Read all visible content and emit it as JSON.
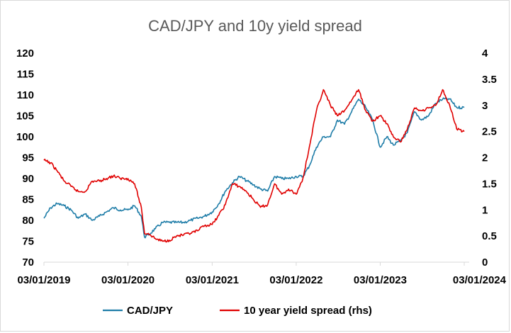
{
  "chart_data": {
    "type": "line",
    "title": "CAD/JPY and 10y yield spread",
    "xlabel": "",
    "ylabel": "",
    "x_ticks": [
      "03/01/2019",
      "03/01/2020",
      "03/01/2021",
      "03/01/2022",
      "03/01/2023",
      "03/01/2024"
    ],
    "x_range": [
      "2019-01-03",
      "2024-01-03"
    ],
    "y_left": {
      "ticks": [
        "120",
        "115",
        "110",
        "105",
        "100",
        "95",
        "90",
        "85",
        "80",
        "75",
        "70"
      ],
      "ylim": [
        70,
        120
      ]
    },
    "y_right": {
      "ticks": [
        "4",
        "3.5",
        "3",
        "2.5",
        "2",
        "1.5",
        "1",
        "0.5",
        "0"
      ],
      "ylim": [
        0,
        4
      ]
    },
    "grid": false,
    "legend_position": "bottom",
    "series": [
      {
        "name": "CAD/JPY",
        "axis": "left",
        "color": "#1F7DA8",
        "x": [
          "2019-01-03",
          "2019-02-01",
          "2019-03-01",
          "2019-04-01",
          "2019-05-01",
          "2019-06-01",
          "2019-07-01",
          "2019-08-01",
          "2019-09-01",
          "2019-10-01",
          "2019-11-01",
          "2019-12-01",
          "2020-01-03",
          "2020-02-01",
          "2020-03-01",
          "2020-03-15",
          "2020-04-01",
          "2020-05-01",
          "2020-06-01",
          "2020-07-01",
          "2020-08-01",
          "2020-09-01",
          "2020-10-01",
          "2020-11-01",
          "2020-12-01",
          "2021-01-03",
          "2021-02-01",
          "2021-03-01",
          "2021-04-01",
          "2021-05-01",
          "2021-06-01",
          "2021-07-01",
          "2021-08-01",
          "2021-09-01",
          "2021-10-01",
          "2021-11-01",
          "2021-12-01",
          "2022-01-03",
          "2022-02-01",
          "2022-03-01",
          "2022-04-01",
          "2022-05-01",
          "2022-06-01",
          "2022-07-01",
          "2022-08-01",
          "2022-09-01",
          "2022-10-01",
          "2022-11-01",
          "2022-12-01",
          "2023-01-03",
          "2023-02-01",
          "2023-03-01",
          "2023-04-01",
          "2023-05-01",
          "2023-06-01",
          "2023-07-01",
          "2023-08-01",
          "2023-09-01",
          "2023-10-01",
          "2023-11-01",
          "2023-12-01",
          "2024-01-03"
        ],
        "values": [
          80.5,
          83,
          84,
          83.5,
          82.5,
          80.5,
          81.5,
          80,
          81,
          82,
          83,
          82.5,
          82.5,
          83.5,
          81,
          76,
          76.5,
          78,
          79.5,
          79.5,
          79.5,
          79.5,
          80,
          80.5,
          81,
          82,
          84,
          87,
          89,
          90.5,
          89.5,
          88.5,
          87.5,
          87,
          90.5,
          90,
          90,
          90.5,
          90.5,
          93,
          97.5,
          100,
          100,
          104,
          103,
          106,
          109,
          107,
          104,
          97.5,
          100,
          98,
          99,
          101,
          106,
          104,
          105,
          108,
          109,
          109,
          107,
          107
        ]
      },
      {
        "name": "10 year yield spread (rhs)",
        "axis": "right",
        "color": "#E00000",
        "x": [
          "2019-01-03",
          "2019-02-01",
          "2019-03-01",
          "2019-04-01",
          "2019-05-01",
          "2019-06-01",
          "2019-07-01",
          "2019-08-01",
          "2019-09-01",
          "2019-10-01",
          "2019-11-01",
          "2019-12-01",
          "2020-01-03",
          "2020-02-01",
          "2020-03-01",
          "2020-03-15",
          "2020-04-01",
          "2020-05-01",
          "2020-06-01",
          "2020-07-01",
          "2020-08-01",
          "2020-09-01",
          "2020-10-01",
          "2020-11-01",
          "2020-12-01",
          "2021-01-03",
          "2021-02-01",
          "2021-03-01",
          "2021-04-01",
          "2021-05-01",
          "2021-06-01",
          "2021-07-01",
          "2021-08-01",
          "2021-09-01",
          "2021-10-01",
          "2021-11-01",
          "2021-12-01",
          "2022-01-03",
          "2022-02-01",
          "2022-03-01",
          "2022-04-01",
          "2022-05-01",
          "2022-06-01",
          "2022-07-01",
          "2022-08-01",
          "2022-09-01",
          "2022-10-01",
          "2022-11-01",
          "2022-12-01",
          "2023-01-03",
          "2023-02-01",
          "2023-03-01",
          "2023-04-01",
          "2023-05-01",
          "2023-06-01",
          "2023-07-01",
          "2023-08-01",
          "2023-09-01",
          "2023-10-01",
          "2023-11-01",
          "2023-12-01",
          "2024-01-03"
        ],
        "values": [
          1.95,
          1.9,
          1.75,
          1.55,
          1.45,
          1.35,
          1.35,
          1.55,
          1.55,
          1.6,
          1.65,
          1.6,
          1.6,
          1.5,
          1.05,
          0.55,
          0.55,
          0.45,
          0.4,
          0.42,
          0.5,
          0.52,
          0.55,
          0.6,
          0.7,
          0.72,
          0.9,
          1.1,
          1.5,
          1.45,
          1.35,
          1.2,
          1.05,
          1.1,
          1.5,
          1.3,
          1.4,
          1.3,
          1.6,
          2.2,
          2.9,
          3.3,
          3.0,
          2.8,
          2.9,
          3.1,
          3.3,
          2.9,
          2.7,
          2.8,
          2.65,
          2.4,
          2.3,
          2.55,
          2.95,
          2.9,
          2.95,
          3.0,
          3.3,
          3.0,
          2.55,
          2.5
        ]
      }
    ]
  }
}
